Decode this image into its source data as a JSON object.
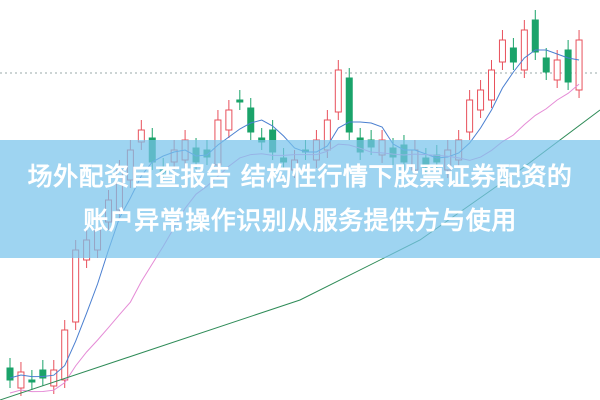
{
  "banner": {
    "line1": "场外配资自查报告 结构性行情下股票证券配资的",
    "line2": "账户异常操作识别从服务提供方与使用"
  },
  "colors": {
    "up": "#e8505b",
    "down": "#1aa36a",
    "banner": "#78c3eb",
    "ma_short": "#4a7fd0",
    "ma_mid": "#e58bd6",
    "ma_long": "#2e8b57"
  }
}
